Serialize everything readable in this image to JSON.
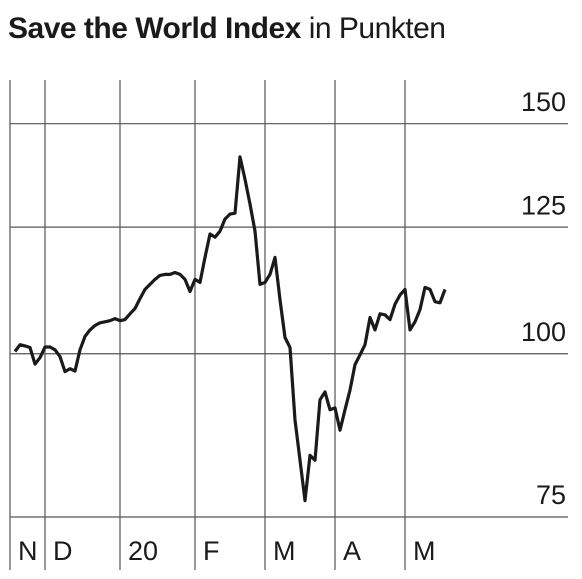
{
  "chart_data": {
    "type": "line",
    "title": "Save the World Index",
    "subtitle": "in Punkten",
    "categories": [
      "N",
      null,
      null,
      null,
      null,
      null,
      null,
      "D",
      null,
      null,
      null,
      null,
      null,
      null,
      null,
      null,
      null,
      null,
      null,
      null,
      null,
      null,
      "20",
      null,
      null,
      null,
      null,
      null,
      null,
      null,
      null,
      null,
      null,
      null,
      null,
      null,
      null,
      "F",
      null,
      null,
      null,
      null,
      null,
      null,
      null,
      null,
      null,
      null,
      null,
      null,
      null,
      "M",
      null,
      null,
      null,
      null,
      null,
      null,
      null,
      null,
      null,
      null,
      null,
      null,
      null,
      "A",
      null,
      null,
      null,
      null,
      null,
      null,
      null,
      null,
      null,
      null,
      null,
      null,
      null,
      "M",
      null,
      null,
      null,
      null,
      null,
      null,
      null,
      null
    ],
    "values": [
      null,
      100.4,
      101.6,
      101.4,
      101.1,
      98.2,
      99.3,
      101.2,
      101.2,
      100.7,
      99.5,
      96.9,
      97.4,
      97.0,
      100.7,
      103.1,
      104.3,
      105.1,
      105.6,
      105.8,
      106.0,
      106.4,
      106.0,
      106.2,
      107.3,
      108.3,
      110.2,
      112.0,
      113.0,
      114.0,
      114.8,
      115.0,
      115.0,
      115.4,
      115.0,
      114.0,
      111.6,
      114.0,
      113.4,
      118.5,
      123.5,
      122.8,
      124.1,
      126.8,
      127.9,
      128.1,
      141.5,
      136.0,
      130.2,
      124.1,
      113.0,
      113.4,
      115.0,
      118.5,
      110.0,
      102.9,
      101.1,
      89.0,
      82.9,
      77.2,
      83.6,
      82.9,
      92.2,
      93.5,
      90.6,
      90.9,
      87.4,
      90.6,
      93.8,
      98.1,
      99.8,
      101.6,
      106.6,
      104.3,
      107.3,
      107.1,
      106.2,
      109.1,
      110.9,
      112.0,
      104.3,
      105.8,
      108.1,
      112.4,
      112.0,
      109.6,
      109.4,
      112.0
    ],
    "color": "#1a1a1a",
    "log_y": true,
    "grid": true,
    "ylim": [
      75,
      162
    ],
    "yticks": [
      75,
      100,
      125,
      150
    ]
  }
}
